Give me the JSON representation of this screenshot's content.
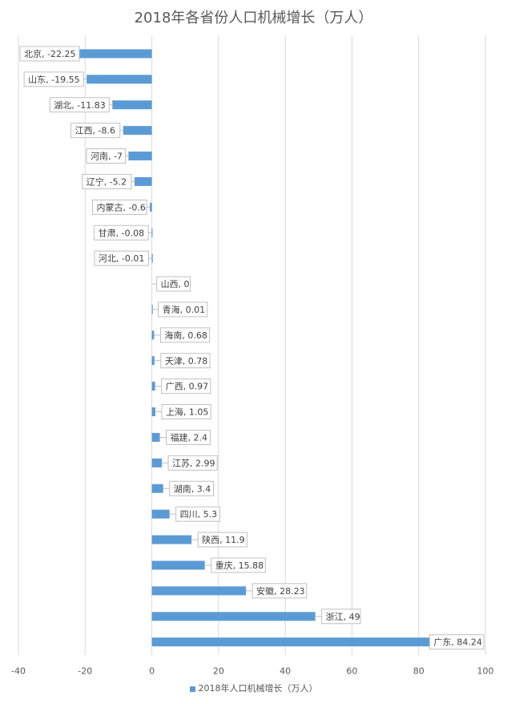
{
  "chart_data": {
    "type": "bar",
    "orientation": "horizontal",
    "title": "2018年各省份人口机械增长（万人）",
    "categories": [
      "北京",
      "山东",
      "湖北",
      "江西",
      "河南",
      "辽宁",
      "内蒙古",
      "甘肃",
      "河北",
      "山西",
      "青海",
      "海南",
      "天津",
      "广西",
      "上海",
      "福建",
      "江苏",
      "湖南",
      "四川",
      "陕西",
      "重庆",
      "安徽",
      "浙江",
      "广东"
    ],
    "series": [
      {
        "name": "2018年人口机械增长（万人）",
        "values": [
          -22.25,
          -19.55,
          -11.83,
          -8.6,
          -7,
          -5.2,
          -0.6,
          -0.08,
          -0.01,
          0,
          0.01,
          0.68,
          0.78,
          0.97,
          1.05,
          2.4,
          2.99,
          3.4,
          5.3,
          11.9,
          15.88,
          28.23,
          49,
          84.24
        ],
        "color": "#5b9bd5"
      }
    ],
    "xlim": [
      -40,
      100
    ],
    "xticks": [
      -40,
      -20,
      0,
      20,
      40,
      60,
      80,
      100
    ],
    "grid": true,
    "legend": "bottom",
    "data_labels": true
  }
}
